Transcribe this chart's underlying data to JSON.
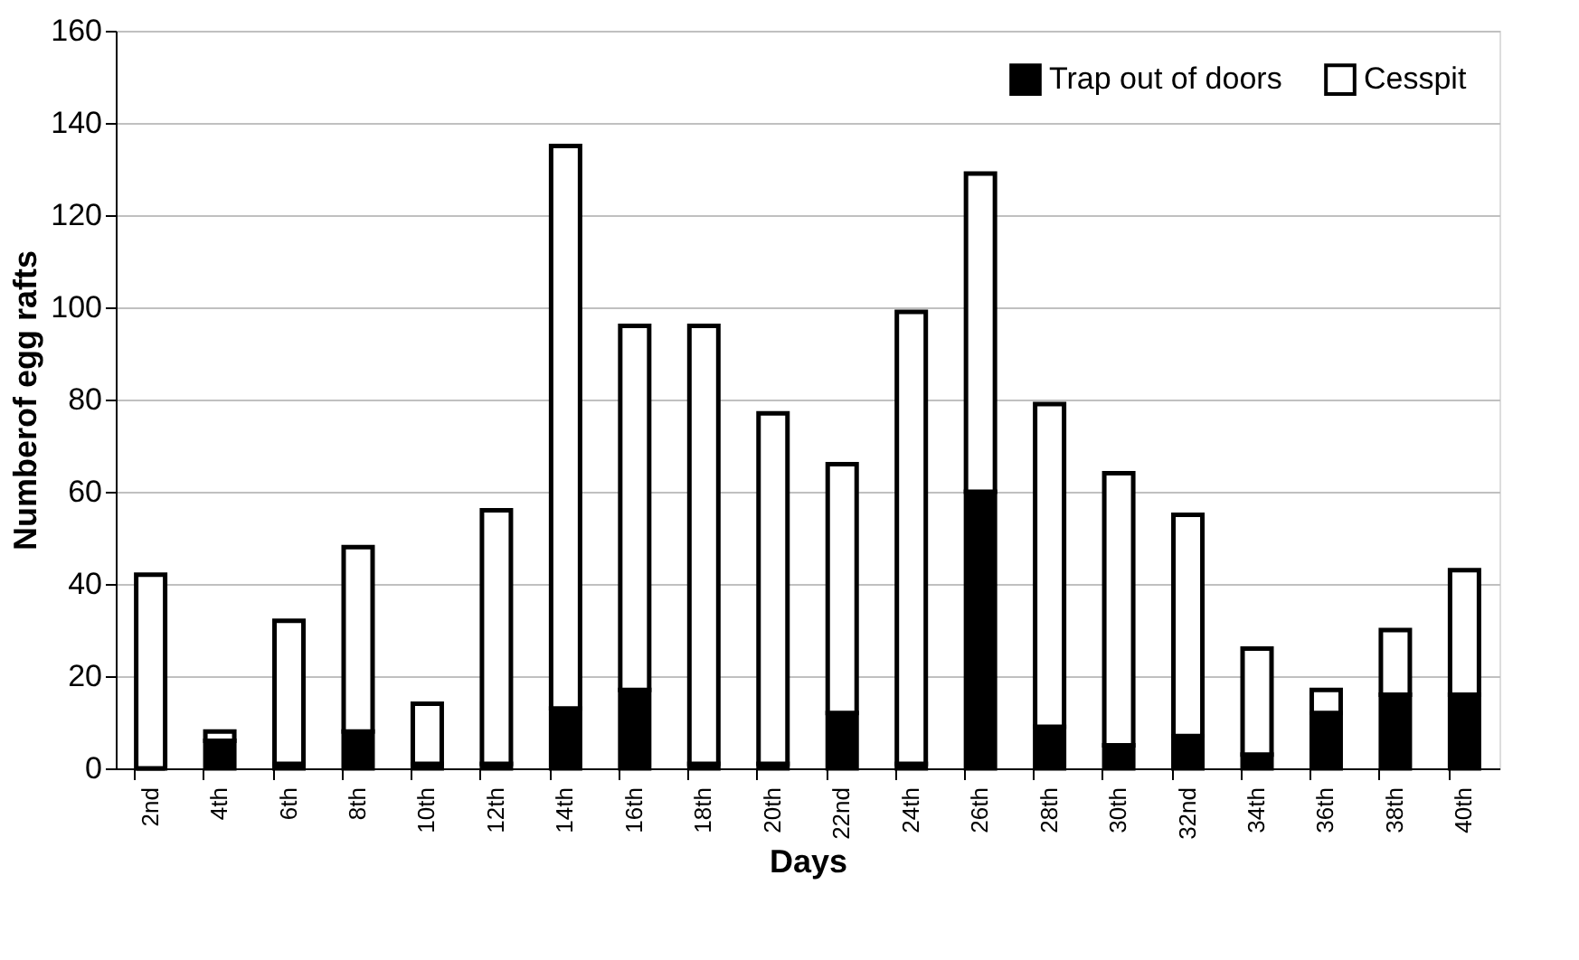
{
  "chart_data": {
    "type": "bar",
    "stacked": true,
    "xlabel": "Days",
    "ylabel": "Numberof egg rafts",
    "categories": [
      "2nd",
      "4th",
      "6th",
      "8th",
      "10th",
      "12th",
      "14th",
      "16th",
      "18th",
      "20th",
      "22nd",
      "24th",
      "26th",
      "28th",
      "30th",
      "32nd",
      "34th",
      "36th",
      "38th",
      "40th"
    ],
    "series": [
      {
        "name": "Trap out of doors",
        "color": "#000000",
        "values": [
          0,
          6,
          1,
          8,
          1,
          1,
          13,
          17,
          1,
          1,
          12,
          1,
          60,
          9,
          5,
          7,
          3,
          12,
          16,
          16
        ]
      },
      {
        "name": "Cesspit",
        "color": "#ffffff",
        "values": [
          42,
          2,
          31,
          40,
          13,
          55,
          122,
          79,
          95,
          76,
          54,
          98,
          69,
          70,
          59,
          48,
          23,
          5,
          14,
          27
        ]
      }
    ],
    "ylim": [
      0,
      160
    ],
    "yticks": [
      0,
      20,
      40,
      60,
      80,
      100,
      120,
      140,
      160
    ],
    "grid": "y",
    "legend": "top right"
  }
}
